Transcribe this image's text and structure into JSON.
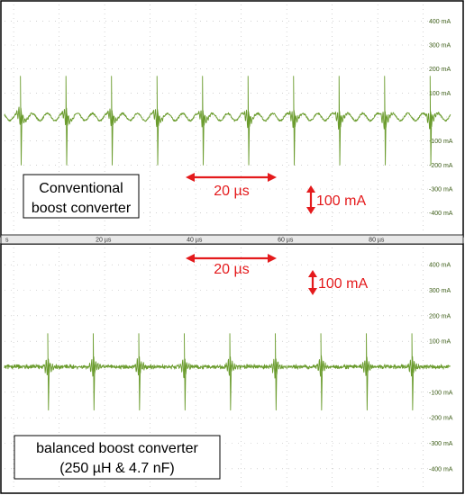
{
  "chart_data": [
    {
      "type": "line",
      "panel": "top",
      "label_lines": [
        "Conventional",
        "boost converter"
      ],
      "y_unit": "mA",
      "y_ticks": [
        "400 mA",
        "300 mA",
        "200 mA",
        "100 mA",
        "-100 mA",
        "-200 mA",
        "-300 mA",
        "-400 mA"
      ],
      "ylim": [
        -450,
        450
      ],
      "xlim_us": [
        -2,
        96
      ],
      "spike_times_us": [
        1.5,
        11.5,
        21.5,
        31.5,
        41.5,
        51.5,
        61.5,
        71.5,
        81.5,
        91.5
      ],
      "spike_peak_mA": 170,
      "spike_trough_mA": -200,
      "ripple_amplitude_mA": 15,
      "ripple_period_us": 3.3,
      "baseline_mA": 0,
      "trace_color": "#6b9c2e",
      "annotations": {
        "time_scale": "20 µs",
        "current_scale": "100 mA"
      }
    },
    {
      "type": "line",
      "panel": "bottom",
      "label_lines": [
        "balanced boost converter",
        "(250 µH & 4.7 nF)"
      ],
      "y_unit": "mA",
      "y_ticks": [
        "400 mA",
        "300 mA",
        "200 mA",
        "100 mA",
        "-100 mA",
        "-200 mA",
        "-300 mA",
        "-400 mA"
      ],
      "ylim": [
        -450,
        450
      ],
      "xlim_us": [
        -2,
        96
      ],
      "x_ticks": [
        "s",
        "20 µs",
        "40 µs",
        "60 µs",
        "80 µs"
      ],
      "spike_times_us": [
        7.5,
        17.5,
        27.5,
        37.5,
        47.5,
        57.5,
        67.5,
        77.5,
        87.5
      ],
      "spike_peak_mA": 130,
      "spike_trough_mA": -170,
      "ripple_amplitude_mA": 6,
      "baseline_mA": 0,
      "trace_color": "#6b9c2e",
      "annotations": {
        "time_scale": "20 µs",
        "current_scale": "100 mA"
      }
    }
  ],
  "colors": {
    "trace": "#6b9c2e",
    "annotation": "#e41a1c",
    "grid": "#b8b8b8",
    "tick_text": "#3f5f1a"
  }
}
